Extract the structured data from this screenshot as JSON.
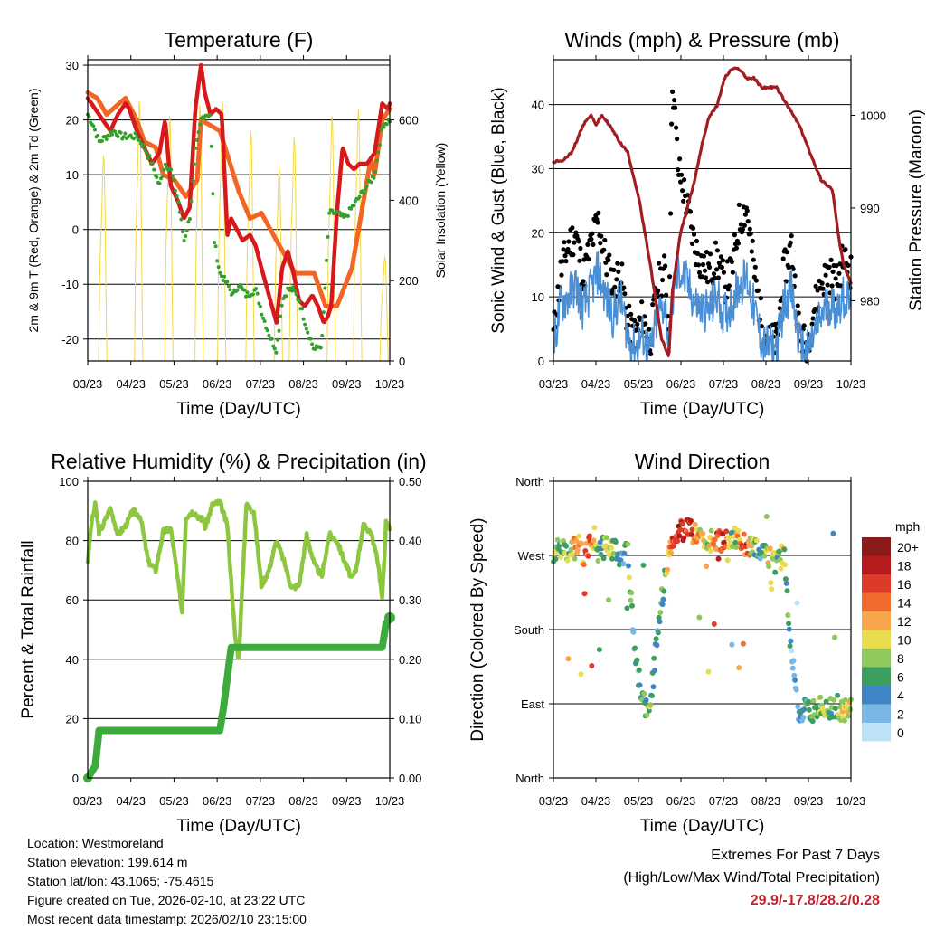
{
  "chart_data": [
    {
      "type": "line",
      "title": "Temperature (F)",
      "xlabel": "Time (Day/UTC)",
      "ylabel": "2m & 9m T (Red, Orange) & 2m Td (Green)",
      "ylabel_right": "Solar Insolation (Yellow)",
      "x_ticks": [
        "03/23",
        "04/23",
        "05/23",
        "06/23",
        "07/23",
        "08/23",
        "09/23",
        "10/23"
      ],
      "y_ticks": [
        30,
        20,
        10,
        0,
        -10,
        -20
      ],
      "y_ticks_right": [
        600,
        400,
        200,
        0
      ],
      "ylim": [
        -24,
        31
      ],
      "ylim_right": [
        0,
        750
      ],
      "grid": true,
      "series": [
        {
          "name": "9m T",
          "color": "#f26522",
          "x": [
            0,
            0.25,
            0.5,
            1,
            1.3,
            1.5,
            1.8,
            2,
            2.3,
            2.6,
            2.9,
            3,
            3.5,
            4,
            4.3,
            4.6,
            5,
            5.5,
            6,
            6.3,
            6.6,
            7,
            7.5,
            7.6,
            7.8,
            8
          ],
          "values": [
            25,
            24,
            21,
            24,
            20,
            16,
            15,
            10,
            9,
            6,
            9,
            20,
            18,
            7,
            2,
            3,
            -2,
            -8,
            -8,
            -14,
            -14,
            -7,
            13,
            10,
            20,
            22
          ]
        },
        {
          "name": "2m T",
          "color": "#d7191c",
          "x": [
            0,
            0.1,
            0.2,
            0.4,
            0.6,
            0.8,
            1,
            1.1,
            1.3,
            1.5,
            1.7,
            1.9,
            2.05,
            2.2,
            2.4,
            2.55,
            2.7,
            2.85,
            3,
            3.1,
            3.25,
            3.4,
            3.55,
            3.7,
            3.8,
            3.95,
            4.1,
            4.3,
            4.45,
            4.6,
            4.8,
            5,
            5.15,
            5.3,
            5.45,
            5.6,
            5.75,
            5.95,
            6.1,
            6.25,
            6.35,
            6.45,
            6.6,
            6.75,
            6.9,
            7.05,
            7.2,
            7.4,
            7.6,
            7.8,
            7.95,
            8
          ],
          "values": [
            24,
            23,
            22,
            20,
            18,
            21,
            23,
            22,
            18,
            15,
            12,
            14,
            20,
            8,
            5,
            2,
            4,
            22,
            30,
            25,
            21,
            22,
            21,
            -1,
            2,
            0,
            -2,
            -1,
            -3,
            -7,
            -12,
            -17,
            -7,
            -4,
            -8,
            -13,
            -14,
            -12,
            -14,
            -17,
            -16,
            -14,
            3,
            15,
            12,
            11,
            12,
            12,
            14,
            23,
            22,
            23
          ]
        },
        {
          "name": "2m Td",
          "color": "#33a02c",
          "x": [
            0,
            0.15,
            0.3,
            0.5,
            0.7,
            0.9,
            1.1,
            1.3,
            1.5,
            1.7,
            1.9,
            2.05,
            2.2,
            2.4,
            2.55,
            2.7,
            2.85,
            3,
            3.1,
            3.25,
            3.35,
            3.5,
            3.7,
            3.85,
            4,
            4.2,
            4.45,
            4.65,
            4.85,
            5,
            5.15,
            5.3,
            5.45,
            5.6,
            5.8,
            6,
            6.2,
            6.4,
            6.6,
            6.8,
            7,
            7.2,
            7.4,
            7.6,
            7.8,
            8
          ],
          "values": [
            21,
            19,
            16,
            17,
            18,
            17,
            17,
            17,
            15,
            12,
            8,
            12,
            11,
            5,
            -2,
            2,
            14,
            20,
            21,
            21,
            -2,
            -8,
            -10,
            -12,
            -10,
            -12,
            -11,
            -16,
            -20,
            -22,
            -13,
            -11,
            -11,
            -13,
            -18,
            -22,
            -21,
            3,
            3,
            2,
            4,
            6,
            8,
            10,
            19,
            20
          ]
        },
        {
          "name": "Solar Insolation",
          "color": "#f5d742",
          "axis": "right",
          "values_note": "daily peaks",
          "x_peaks": [
            0.4,
            1.35,
            2.15,
            2.95,
            3.55,
            4.3,
            5.05,
            5.45,
            6.45,
            7.15,
            7.85
          ],
          "values": [
            570,
            720,
            680,
            710,
            720,
            640,
            540,
            620,
            680,
            700,
            290
          ]
        }
      ]
    },
    {
      "type": "scatter",
      "title": "Winds (mph) & Pressure (mb)",
      "xlabel": "Time (Day/UTC)",
      "ylabel": "Sonic Wind & Gust (Blue, Black)",
      "ylabel_right": "Station Pressure (Maroon)",
      "x_ticks": [
        "03/23",
        "04/23",
        "05/23",
        "06/23",
        "07/23",
        "08/23",
        "09/23",
        "10/23"
      ],
      "y_ticks": [
        40,
        30,
        20,
        10,
        0
      ],
      "y_ticks_right": [
        1000,
        990,
        980
      ],
      "ylim": [
        0,
        47
      ],
      "ylim_right": [
        973.5,
        1006
      ],
      "grid": true,
      "series": [
        {
          "name": "Sonic Wind",
          "color": "#4a8fd4",
          "x": [
            0,
            0.2,
            0.4,
            0.6,
            0.8,
            1,
            1.2,
            1.4,
            1.6,
            1.8,
            2,
            2.2,
            2.4,
            2.6,
            2.8,
            3,
            3.1,
            3.25,
            3.4,
            3.6,
            3.8,
            4,
            4.2,
            4.4,
            4.6,
            4.8,
            5,
            5.2,
            5.4,
            5.6,
            5.8,
            6,
            6.2,
            6.4,
            6.6,
            6.8,
            7,
            7.2,
            7.4,
            7.6,
            7.8,
            8
          ],
          "values": [
            2,
            9,
            10,
            12,
            8,
            11,
            14,
            10,
            7,
            10,
            4,
            2,
            4,
            1,
            7,
            9,
            2,
            12,
            14,
            12,
            9,
            8,
            8,
            10,
            7,
            9,
            12,
            13,
            8,
            3,
            2,
            2,
            9,
            11,
            3,
            1,
            4,
            7,
            9,
            8,
            10,
            9
          ]
        },
        {
          "name": "Gust",
          "color": "#000000",
          "x": [
            0,
            0.2,
            0.4,
            0.6,
            0.8,
            1,
            1.2,
            1.4,
            1.6,
            1.8,
            2,
            2.2,
            2.4,
            2.6,
            2.8,
            3,
            3.1,
            3.2,
            3.25,
            3.35,
            3.45,
            3.6,
            3.8,
            4,
            4.2,
            4.4,
            4.6,
            4.8,
            5,
            5.2,
            5.4,
            5.6,
            5.8,
            6,
            6.2,
            6.4,
            6.6,
            6.8,
            7,
            7.2,
            7.4,
            7.6,
            7.8,
            8
          ],
          "values": [
            4,
            14,
            18,
            20,
            13,
            18,
            22,
            16,
            12,
            14,
            6,
            4,
            7,
            3,
            12,
            14,
            5,
            44,
            40,
            30,
            28,
            24,
            18,
            15,
            14,
            16,
            12,
            14,
            22,
            24,
            14,
            6,
            3,
            3,
            14,
            18,
            5,
            2,
            8,
            12,
            14,
            12,
            16,
            14
          ]
        },
        {
          "name": "Station Pressure",
          "color": "#a11d21",
          "axis": "right",
          "x": [
            0,
            0.2,
            0.5,
            0.8,
            1,
            1.15,
            1.3,
            1.5,
            1.8,
            2,
            2.3,
            2.6,
            2.9,
            3,
            3.1,
            3.2,
            3.4,
            3.6,
            3.8,
            4,
            4.2,
            4.4,
            4.6,
            4.8,
            5,
            5.2,
            5.4,
            5.6,
            5.8,
            6,
            6.3,
            6.6,
            6.9,
            7.2,
            7.5,
            7.7,
            7.8,
            7.9,
            8
          ],
          "values": [
            995,
            995,
            996,
            999,
            1000,
            999,
            1000,
            999,
            997,
            996,
            991,
            984,
            976,
            975,
            974,
            981,
            987,
            990,
            993,
            997,
            1000,
            1001,
            1004,
            1005,
            1005,
            1004,
            1004,
            1003,
            1003,
            1003,
            1001,
            999,
            996,
            993,
            992,
            986,
            984,
            983,
            982
          ]
        }
      ]
    },
    {
      "type": "line",
      "title": "Relative Humidity (%) & Precipitation (in)",
      "xlabel": "Time (Day/UTC)",
      "ylabel": "Percent & Total Rainfall",
      "x_ticks": [
        "03/23",
        "04/23",
        "05/23",
        "06/23",
        "07/23",
        "08/23",
        "09/23",
        "10/23"
      ],
      "y_ticks": [
        100,
        80,
        60,
        40,
        20,
        0
      ],
      "y_ticks_right": [
        "0.50",
        "0.40",
        "0.30",
        "0.20",
        "0.10",
        "0.00"
      ],
      "ylim": [
        0,
        100
      ],
      "ylim_right": [
        0,
        0.5
      ],
      "grid": true,
      "series": [
        {
          "name": "Relative Humidity",
          "color": "#8dc63f",
          "x": [
            0,
            0.1,
            0.2,
            0.3,
            0.4,
            0.6,
            0.8,
            1,
            1.2,
            1.4,
            1.6,
            1.8,
            2,
            2.2,
            2.3,
            2.5,
            2.6,
            2.8,
            3,
            3.05,
            3.1,
            3.3,
            3.5,
            3.7,
            3.9,
            4,
            4.2,
            4.4,
            4.6,
            4.8,
            5,
            5.2,
            5.4,
            5.6,
            5.8,
            6,
            6.2,
            6.4,
            6.6,
            6.8,
            7,
            7.1,
            7.3,
            7.5,
            7.7,
            7.8,
            7.9,
            8
          ],
          "values": [
            73,
            86,
            92,
            83,
            85,
            91,
            82,
            85,
            90,
            88,
            73,
            70,
            83,
            84,
            75,
            56,
            88,
            90,
            87,
            88,
            84,
            92,
            93,
            85,
            48,
            40,
            92,
            90,
            65,
            70,
            80,
            73,
            64,
            65,
            82,
            72,
            68,
            82,
            80,
            73,
            67,
            70,
            85,
            83,
            72,
            60,
            86,
            84
          ]
        },
        {
          "name": "Total Precipitation",
          "color": "#3cab3c",
          "axis": "right",
          "x": [
            0,
            0.2,
            0.3,
            0.5,
            1,
            2,
            3.2,
            3.5,
            3.6,
            3.8,
            4,
            5,
            6,
            7,
            7.8,
            7.9,
            8
          ],
          "values": [
            0,
            0.02,
            0.08,
            0.08,
            0.08,
            0.08,
            0.08,
            0.08,
            0.12,
            0.22,
            0.22,
            0.22,
            0.22,
            0.22,
            0.22,
            0.26,
            0.27
          ]
        }
      ]
    },
    {
      "type": "scatter",
      "title": "Wind Direction",
      "xlabel": "Time (Day/UTC)",
      "ylabel": "Direction (Colored By Speed)",
      "x_ticks": [
        "03/23",
        "04/23",
        "05/23",
        "06/23",
        "07/23",
        "08/23",
        "09/23",
        "10/23"
      ],
      "y_ticks": [
        "North",
        "West",
        "South",
        "East",
        "North"
      ],
      "ylim": [
        0,
        360
      ],
      "grid": true,
      "legend": {
        "title": "mph",
        "position": "right",
        "labels": [
          "20+",
          "18",
          "16",
          "14",
          "12",
          "10",
          "8",
          "6",
          "4",
          "2",
          "0"
        ],
        "colors": [
          "#8b1a1a",
          "#b71c1c",
          "#dd3a2a",
          "#f26a2e",
          "#f9a54a",
          "#e8dd4f",
          "#8fc85b",
          "#3c9e5f",
          "#3f87c4",
          "#7ab6e3",
          "#bfe3f6"
        ]
      },
      "series": [
        {
          "name": "Wind direction",
          "x": [
            0.2,
            0.4,
            0.6,
            0.8,
            1,
            1.2,
            1.5,
            1.8,
            2,
            2.2,
            2.4,
            2.6,
            2.8,
            3,
            3.1,
            3.2,
            3.4,
            3.6,
            3.8,
            4,
            4.2,
            4.4,
            4.6,
            4.8,
            5,
            5.2,
            5.4,
            5.6,
            5.8,
            6,
            6.2,
            6.4,
            6.6,
            6.8,
            7,
            7.2,
            7.4,
            7.6,
            7.8,
            8
          ],
          "values": [
            275,
            278,
            280,
            272,
            285,
            276,
            282,
            270,
            274,
            150,
            90,
            85,
            175,
            248,
            265,
            286,
            300,
            302,
            296,
            290,
            288,
            285,
            290,
            294,
            286,
            282,
            276,
            272,
            268,
            262,
            272,
            150,
            80,
            85,
            82,
            86,
            84,
            88,
            80,
            86
          ],
          "speeds": [
            8,
            10,
            12,
            14,
            16,
            6,
            10,
            4,
            8,
            4,
            6,
            8,
            6,
            8,
            14,
            16,
            18,
            18,
            14,
            12,
            10,
            16,
            18,
            6,
            14,
            16,
            8,
            6,
            12,
            8,
            10,
            2,
            4,
            6,
            8,
            10,
            8,
            6,
            12,
            10
          ]
        }
      ]
    }
  ],
  "info": {
    "location": "Location: Westmoreland",
    "elevation": "Station elevation: 199.614 m",
    "latlon": "Station lat/lon: 43.1065; -75.4615",
    "created": "Figure created on Tue, 2026-02-10, at 23:22 UTC",
    "recent": "Most recent data timestamp: 2026/02/10 23:15:00"
  },
  "extremes": {
    "title": "Extremes For Past 7 Days",
    "subtitle": "(High/Low/Max Wind/Total Precipitation)",
    "values": "29.9/-17.8/28.2/0.28"
  }
}
